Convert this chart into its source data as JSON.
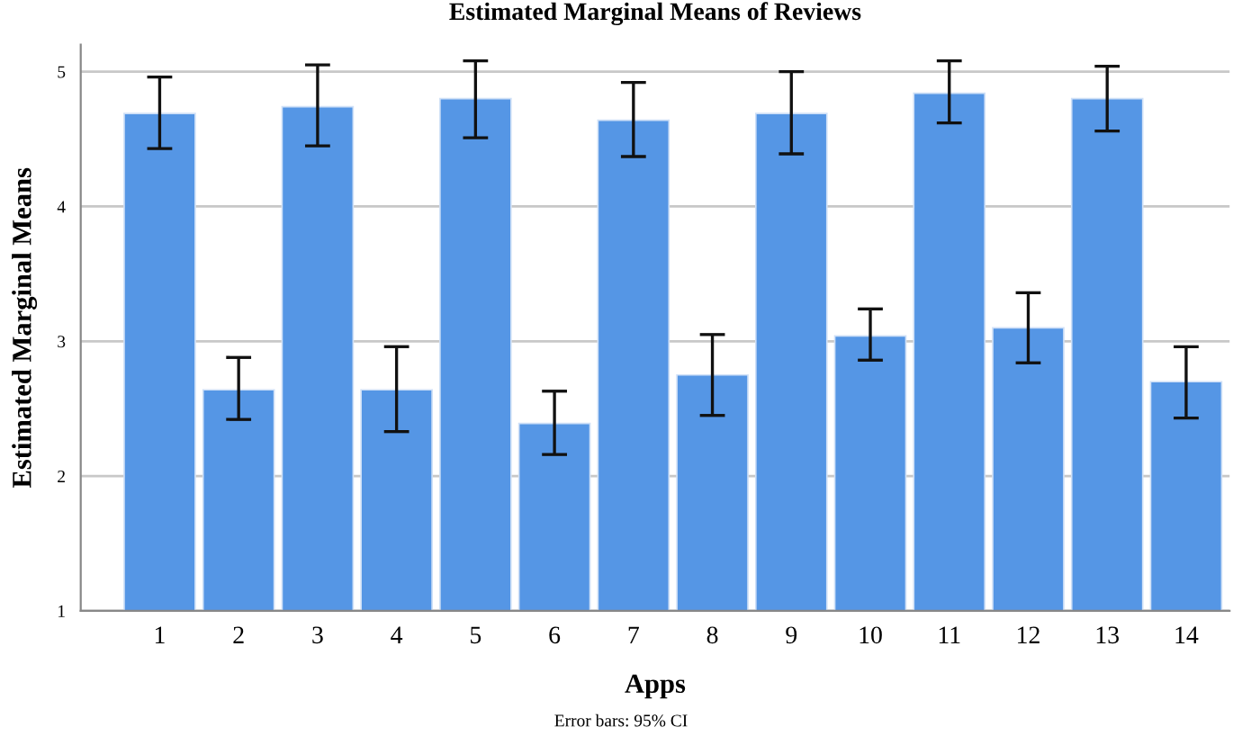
{
  "chart_data": {
    "type": "bar",
    "title": "Estimated Marginal Means of Reviews",
    "xlabel": "Apps",
    "ylabel": "Estimated Marginal Means",
    "categories": [
      "1",
      "2",
      "3",
      "4",
      "5",
      "6",
      "7",
      "8",
      "9",
      "10",
      "11",
      "12",
      "13",
      "14"
    ],
    "values": [
      4.69,
      2.64,
      4.74,
      2.64,
      4.8,
      2.39,
      4.64,
      2.75,
      4.69,
      3.04,
      4.84,
      3.1,
      4.8,
      2.7
    ],
    "errors": [
      [
        4.43,
        4.96
      ],
      [
        2.42,
        2.88
      ],
      [
        4.45,
        5.05
      ],
      [
        2.33,
        2.96
      ],
      [
        4.51,
        5.08
      ],
      [
        2.16,
        2.63
      ],
      [
        4.37,
        4.92
      ],
      [
        2.45,
        3.05
      ],
      [
        4.39,
        5.0
      ],
      [
        2.86,
        3.24
      ],
      [
        4.62,
        5.08
      ],
      [
        2.84,
        3.36
      ],
      [
        4.56,
        5.04
      ],
      [
        2.43,
        2.96
      ]
    ],
    "color": "#5596e5",
    "ylim": [
      1,
      5.2
    ],
    "yticks": [
      1,
      2,
      3,
      4,
      5
    ],
    "grid": "y",
    "annotations": [
      "Error bars: 95% CI"
    ]
  }
}
